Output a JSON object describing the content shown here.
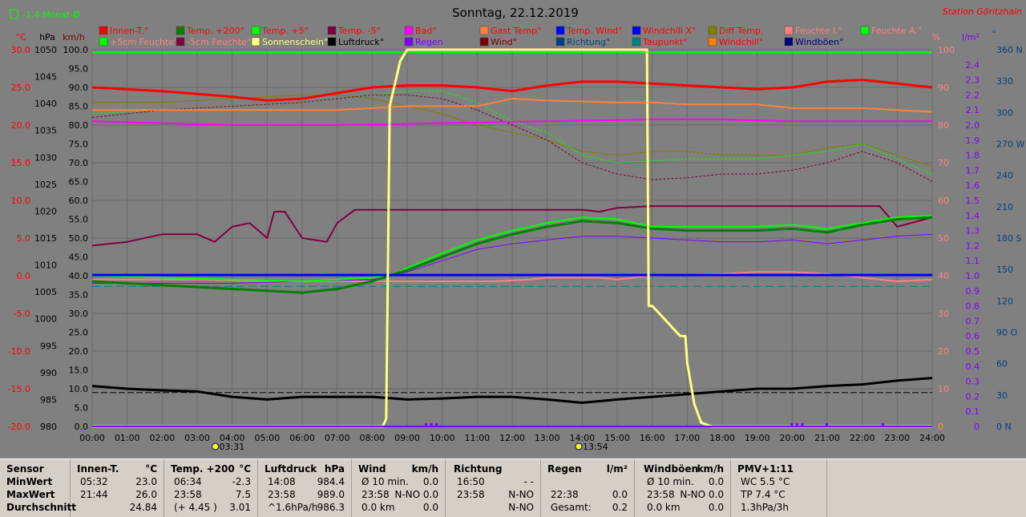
{
  "station": "Station Göritzhain",
  "month_indicator": "-1.4 Monat-Ø",
  "title": "Sonntag, 22.12.2019",
  "colors": {
    "innen": "#ff0000",
    "temp200": "#008000",
    "temp5": "#00ff00",
    "tempm5": "#800040",
    "bad": "#ff00ff",
    "gast": "#ff8040",
    "tempwind": "#0000ff",
    "windchillx": "#0000ff",
    "difftemp": "#808000",
    "feuchtei": "#ff8080",
    "feuchtea": "#00ff00",
    "feuchte5": "#00ff00",
    "feuchtem5": "#800040",
    "sonne": "#ffff80",
    "luftdruck": "#000000",
    "regen": "#8000ff",
    "wind": "#800000",
    "richtung": "#004080",
    "taupunkt": "#008080",
    "windchill": "#ff8000",
    "windboeen": "#000080"
  },
  "legend": [
    {
      "label": "Innen-T.°",
      "color": "#ff0000",
      "text_color": "#ff0000"
    },
    {
      "label": "Temp. +200°",
      "color": "#008000",
      "text_color": "#ff0000"
    },
    {
      "label": "Temp. +5°",
      "color": "#00ff00",
      "text_color": "#ff0000"
    },
    {
      "label": "Temp. -5°",
      "color": "#800040",
      "text_color": "#ff0000"
    },
    {
      "label": "Bad°",
      "color": "#ff00ff",
      "text_color": "#ff0000"
    },
    {
      "label": "Gast Temp°",
      "color": "#ff8040",
      "text_color": "#ff0000"
    },
    {
      "label": "Temp. Wind°",
      "color": "#0000ff",
      "text_color": "#ff0000"
    },
    {
      "label": "Windchill X°",
      "color": "#0000ff",
      "text_color": "#ff0000"
    },
    {
      "label": "Diff Temp.",
      "color": "#808000",
      "text_color": "#ff0000"
    },
    {
      "label": "Feuchte I.°",
      "color": "#ff8080",
      "text_color": "#ff8080"
    },
    {
      "label": "Feuchte A.°",
      "color": "#00ff00",
      "text_color": "#ff8080"
    },
    {
      "label": "+5cm Feuchte°",
      "color": "#00ff00",
      "text_color": "#ff8080"
    },
    {
      "label": "-5cm Feuchte°",
      "color": "#800040",
      "text_color": "#ff8080"
    },
    {
      "label": "Sonnenschein°",
      "color": "#ffff80",
      "text_color": "#ffff80"
    },
    {
      "label": "Luftdruck°",
      "color": "#000000",
      "text_color": "#000000"
    },
    {
      "label": "Regen",
      "color": "#8000ff",
      "text_color": "#8000ff"
    },
    {
      "label": "Wind°",
      "color": "#800000",
      "text_color": "#800000"
    },
    {
      "label": "Richtung°",
      "color": "#004080",
      "text_color": "#004080"
    },
    {
      "label": "Taupunkt°",
      "color": "#008080",
      "text_color": "#ff0000"
    },
    {
      "label": "Windchill°",
      "color": "#ff8000",
      "text_color": "#ff0000"
    },
    {
      "label": "Windböen°",
      "color": "#000080",
      "text_color": "#000080"
    }
  ],
  "axis_units": {
    "temp": "°C",
    "pressure": "hPa",
    "wind": "km/h",
    "humidity": "%",
    "rain": "l/m²",
    "direction": "°"
  },
  "chart_data": {
    "type": "line",
    "x_unit": "hour",
    "x_ticks": [
      "00:00",
      "01:00",
      "02:00",
      "03:00",
      "04:00",
      "05:00",
      "06:00",
      "07:00",
      "08:00",
      "09:00",
      "10:00",
      "11:00",
      "12:00",
      "13:00",
      "14:00",
      "15:00",
      "16:00",
      "17:00",
      "18:00",
      "19:00",
      "20:00",
      "21:00",
      "22:00",
      "23:00",
      "24:00"
    ],
    "xlim": [
      0,
      24
    ],
    "axes": {
      "temp": {
        "ylim": [
          -20,
          30
        ],
        "ticks": [
          "30.0",
          "25.0",
          "20.0",
          "15.0",
          "10.0",
          "5.0",
          "0.0",
          "-5.0",
          "-10.0",
          "-15.0",
          "-20.0"
        ]
      },
      "pressure": {
        "ylim": [
          980,
          1050
        ],
        "ticks": [
          "1050",
          "1045",
          "1040",
          "1035",
          "1030",
          "1025",
          "1020",
          "1015",
          "1010",
          "1005",
          "1000",
          "995",
          "990",
          "985",
          "980"
        ]
      },
      "wind": {
        "ylim": [
          0,
          100
        ],
        "ticks": [
          "100.0",
          "95.0",
          "90.0",
          "85.0",
          "80.0",
          "75.0",
          "70.0",
          "65.0",
          "60.0",
          "55.0",
          "50.0",
          "45.0",
          "40.0",
          "35.0",
          "30.0",
          "25.0",
          "20.0",
          "15.0",
          "10.0",
          "5.0",
          "0.0"
        ]
      },
      "humidity": {
        "ylim": [
          0,
          100
        ],
        "ticks": [
          "100",
          "90",
          "80",
          "70",
          "60",
          "50",
          "40",
          "30",
          "20",
          "10",
          "0"
        ]
      },
      "rain": {
        "ylim": [
          0,
          2.5
        ],
        "ticks": [
          "2.4",
          "2.3",
          "2.2",
          "2.1",
          "2.0",
          "1.9",
          "1.8",
          "1.7",
          "1.6",
          "1.5",
          "1.4",
          "1.3",
          "1.2",
          "1.1",
          "1.0",
          "0.9",
          "0.8",
          "0.7",
          "0.6",
          "0.5",
          "0.4",
          "0.3",
          "0.2",
          "0.1",
          "0"
        ]
      },
      "direction": {
        "ylim": [
          0,
          360
        ],
        "ticks": [
          "360 N",
          "330",
          "300",
          "270 W",
          "240",
          "210",
          "180 S",
          "150",
          "120",
          "90 O",
          "60",
          "30",
          "0 N"
        ]
      }
    },
    "sunrise": "03:31",
    "sunset": "13:54",
    "series": [
      {
        "name": "Innen-T.°",
        "axis": "humidity",
        "color": "#ff0000",
        "width": 3,
        "dash": "",
        "x": [
          0,
          2,
          4,
          5,
          6,
          7,
          8,
          9,
          10,
          11,
          12,
          13,
          14,
          15,
          16,
          17,
          18,
          19,
          20,
          21,
          22,
          23,
          24
        ],
        "y": [
          90,
          89,
          87.5,
          86.5,
          87,
          88.5,
          90,
          90.5,
          90.5,
          90,
          89,
          90.5,
          91.5,
          91.5,
          91,
          90.5,
          90,
          89.5,
          90,
          91.5,
          92,
          91,
          90
        ]
      },
      {
        "name": "Gast Temp°",
        "axis": "humidity",
        "color": "#ff8040",
        "width": 2,
        "dash": "",
        "x": [
          0,
          4,
          7,
          9,
          11,
          12,
          13,
          15,
          16,
          17,
          18,
          19,
          20,
          21,
          22,
          24
        ],
        "y": [
          84,
          84,
          84,
          85,
          85,
          87,
          86.5,
          86,
          86,
          85.5,
          85.5,
          85.5,
          84.5,
          84.5,
          84.5,
          83.5
        ]
      },
      {
        "name": "Bad°",
        "axis": "humidity",
        "color": "#ff00ff",
        "width": 2,
        "dash": "",
        "x": [
          0,
          4,
          7,
          10,
          13,
          16,
          18,
          20,
          22,
          24
        ],
        "y": [
          81,
          80,
          80,
          80.5,
          81,
          81.5,
          81.5,
          81,
          81,
          81
        ]
      },
      {
        "name": "Diff Temp.",
        "axis": "humidity",
        "color": "#808000",
        "width": 1,
        "dash": "",
        "x": [
          0,
          2,
          4,
          6,
          7,
          8,
          9,
          10,
          11,
          12,
          13,
          14,
          15,
          16,
          17,
          18,
          19,
          20,
          21,
          22,
          23,
          24
        ],
        "y": [
          86,
          86,
          87,
          88,
          88,
          87,
          85,
          83,
          80,
          78,
          76,
          73,
          72,
          73,
          73,
          72,
          72,
          72,
          74,
          75,
          72,
          69
        ]
      },
      {
        "name": "+5cm Feuchte°",
        "axis": "humidity",
        "color": "#00ff00",
        "width": 1,
        "dash": "3,2",
        "x": [
          0,
          2,
          4,
          6,
          7,
          8,
          9,
          10,
          11,
          12,
          13,
          14,
          15,
          16,
          17,
          18,
          19,
          20,
          21,
          22,
          23,
          24
        ],
        "y": [
          83,
          84,
          85,
          86,
          87,
          88,
          89,
          89,
          86,
          81,
          78,
          72,
          70,
          70.5,
          71,
          71,
          71,
          72,
          73,
          75,
          71,
          67
        ]
      },
      {
        "name": "-5cm Feuchte°",
        "axis": "humidity",
        "color": "#800040",
        "width": 1,
        "dash": "3,2",
        "x": [
          0,
          2,
          4,
          6,
          7,
          8,
          9,
          10,
          11,
          12,
          13,
          14,
          15,
          16,
          17,
          18,
          19,
          20,
          21,
          22,
          23,
          24
        ],
        "y": [
          82,
          84,
          85,
          86,
          87,
          88,
          88,
          87,
          84,
          80,
          76,
          70,
          67,
          65.5,
          66,
          67,
          67,
          68,
          70,
          73,
          70,
          65
        ]
      },
      {
        "name": "Temp. -5°",
        "axis": "humidity",
        "color": "#800040",
        "width": 2,
        "dash": "",
        "x": [
          0,
          1,
          2,
          3,
          3.5,
          4,
          4.5,
          5,
          5.2,
          5.5,
          6,
          6.7,
          7,
          7.5,
          8,
          10,
          12,
          14,
          14.5,
          15,
          16,
          18,
          20,
          22,
          22.5,
          23,
          24
        ],
        "y": [
          48,
          49,
          51,
          51,
          49,
          53,
          54,
          50,
          57,
          57,
          50,
          49,
          54,
          57.5,
          57.5,
          57.5,
          57.5,
          57.5,
          57,
          58,
          58.5,
          58.5,
          58.5,
          58.5,
          58.5,
          53,
          55.5
        ]
      },
      {
        "name": "Temp. +5°",
        "axis": "humidity",
        "color": "#00ff00",
        "width": 2,
        "dash": "",
        "x": [
          0,
          2,
          4,
          6,
          7,
          8,
          8.5,
          9,
          10,
          11,
          12,
          13,
          14,
          15,
          16,
          17,
          18,
          19,
          20,
          21,
          22,
          23,
          24
        ],
        "y": [
          40,
          39.5,
          39,
          38.5,
          39,
          39.5,
          40,
          42,
          46,
          49.5,
          52,
          54,
          55.5,
          55,
          53,
          53,
          53,
          53,
          53.5,
          52.5,
          54,
          55.5,
          56
        ]
      },
      {
        "name": "Temp. +200°",
        "axis": "humidity",
        "color": "#008000",
        "width": 3,
        "dash": "",
        "x": [
          0,
          2,
          4,
          5,
          6,
          7,
          8,
          8.5,
          9,
          10,
          11,
          12,
          13,
          14,
          15,
          16,
          17,
          18,
          19,
          20,
          21,
          22,
          23,
          24
        ],
        "y": [
          38.5,
          37.5,
          36.5,
          36,
          35.5,
          36.5,
          38.5,
          40,
          41.5,
          45,
          48.5,
          51,
          53,
          54.5,
          54,
          52.5,
          52,
          52,
          52,
          52.5,
          51.5,
          53.5,
          55,
          55.5
        ]
      },
      {
        "name": "Richtung°",
        "axis": "humidity",
        "color": "#8000ff",
        "width": 1,
        "dash": "",
        "x": [
          0,
          4,
          8,
          9,
          10,
          11,
          12,
          13,
          14,
          15,
          16,
          17,
          18,
          19,
          20,
          21,
          22,
          23,
          24
        ],
        "y": [
          38,
          38,
          39,
          41,
          44,
          47,
          48.5,
          49.5,
          50.5,
          50.5,
          50,
          49.5,
          49,
          49,
          49.5,
          48.5,
          49.5,
          50.5,
          51
        ]
      },
      {
        "name": "Feuchte I.°",
        "axis": "humidity",
        "color": "#ff8080",
        "width": 2,
        "dash": "",
        "x": [
          0,
          3,
          5,
          8,
          10,
          11.5,
          12.5,
          13,
          14.5,
          15,
          15.5,
          16,
          18,
          19,
          20,
          21,
          22,
          23,
          24
        ],
        "y": [
          39,
          39,
          38.5,
          38.5,
          38.5,
          38.5,
          39,
          39.5,
          39.5,
          39,
          39.5,
          40,
          40.5,
          41,
          41,
          40.5,
          39.5,
          38.5,
          39
        ]
      },
      {
        "name": "Temp. Wind°",
        "axis": "humidity",
        "color": "#0000ff",
        "width": 3,
        "dash": "",
        "x": [
          0,
          24
        ],
        "y": [
          40.2,
          40.2
        ]
      },
      {
        "name": "Feuchte A.°",
        "axis": "humidity",
        "color": "#00ff00",
        "width": 2,
        "dash": "",
        "x": [
          0,
          24
        ],
        "y": [
          99.3,
          99.3
        ]
      },
      {
        "name": "Taupunkt°",
        "axis": "humidity",
        "color": "#008080",
        "width": 1,
        "dash": "10,5",
        "x": [
          0,
          24
        ],
        "y": [
          37.2,
          37.2
        ]
      },
      {
        "name": "Luftdruck°",
        "axis": "pressure",
        "color": "#000000",
        "width": 3,
        "dash": "",
        "x": [
          0,
          1,
          2,
          3,
          4,
          5,
          6,
          7,
          8,
          9,
          10,
          11,
          12,
          13,
          14,
          15,
          16,
          17,
          18,
          19,
          20,
          21,
          22,
          23,
          24
        ],
        "y": [
          987.5,
          987,
          986.7,
          986.5,
          985.5,
          985,
          985.5,
          985.5,
          985.5,
          985,
          985.2,
          985.5,
          985.5,
          985,
          984.4,
          985,
          985.5,
          986,
          986.5,
          987,
          987,
          987.5,
          987.8,
          988.5,
          989
        ]
      },
      {
        "name": "Luftdruck Mittel",
        "axis": "pressure",
        "color": "#000000",
        "width": 1,
        "dash": "8,3",
        "x": [
          0,
          24
        ],
        "y": [
          986.3,
          986.3
        ]
      },
      {
        "name": "Sonnenschein°",
        "axis": "wind",
        "color": "#ffff80",
        "width": 3,
        "dash": "",
        "x": [
          0,
          8.3,
          8.4,
          8.5,
          8.8,
          9,
          15.85,
          15.9,
          16,
          16.8,
          16.95,
          17,
          17.2,
          17.4,
          17.7,
          24
        ],
        "y": [
          0,
          0,
          2,
          85,
          97,
          100,
          100,
          32,
          32,
          24,
          24,
          17,
          6,
          1,
          0,
          0
        ]
      }
    ],
    "rain_marks_x": [
      9.55,
      9.7,
      9.85,
      20,
      20.15,
      20.3,
      21,
      22.6
    ]
  },
  "stats": {
    "sensor": {
      "title": "Sensor",
      "rows": [
        "MinWert",
        "MaxWert",
        "Durchschnitt"
      ]
    },
    "innen": {
      "title": "Innen-T.",
      "unit": "°C",
      "rows": [
        [
          "05:32",
          "23.0"
        ],
        [
          "21:44",
          "26.0"
        ],
        [
          "",
          "24.84"
        ]
      ]
    },
    "temp200": {
      "title": "Temp. +200",
      "unit": "°C",
      "rows": [
        [
          "06:34",
          "-2.3"
        ],
        [
          "23:58",
          "7.5"
        ],
        [
          "(+ 4.45 )",
          "3.01"
        ]
      ]
    },
    "luftdruck": {
      "title": "Luftdruck",
      "unit": "hPa",
      "rows": [
        [
          "14:08",
          "984.4"
        ],
        [
          "23:58",
          "989.0"
        ],
        [
          "^1.6hPa/h",
          "986.3"
        ]
      ]
    },
    "wind": {
      "title": "Wind",
      "unit": "km/h",
      "rows": [
        [
          "Ø 10 min.",
          "0.0"
        ],
        [
          "23:58",
          "N-NO 0.0"
        ],
        [
          "0.0 km",
          "0.0"
        ]
      ]
    },
    "richtung": {
      "title": "Richtung",
      "unit": "",
      "rows": [
        [
          "16:50",
          "- -"
        ],
        [
          "23:58",
          "N-NO"
        ],
        [
          "",
          "N-NO"
        ]
      ]
    },
    "regen": {
      "title": "Regen",
      "unit": "l/m²",
      "rows": [
        [
          "",
          ""
        ],
        [
          "22:38",
          "0.0"
        ],
        [
          "Gesamt:",
          "0.2"
        ]
      ]
    },
    "windboeen": {
      "title": "Windböen",
      "unit": "km/h",
      "rows": [
        [
          "Ø 10 min.",
          "0.0"
        ],
        [
          "23:58",
          "N-NO 0.0"
        ],
        [
          "0.0 km",
          "0.0"
        ]
      ]
    },
    "pmv": {
      "title": "PMV+1:11",
      "unit": "",
      "rows": [
        [
          "WC 5.5 °C",
          ""
        ],
        [
          "TP 7.4 °C",
          ""
        ],
        [
          "1.3hPa/3h",
          ""
        ]
      ]
    }
  }
}
